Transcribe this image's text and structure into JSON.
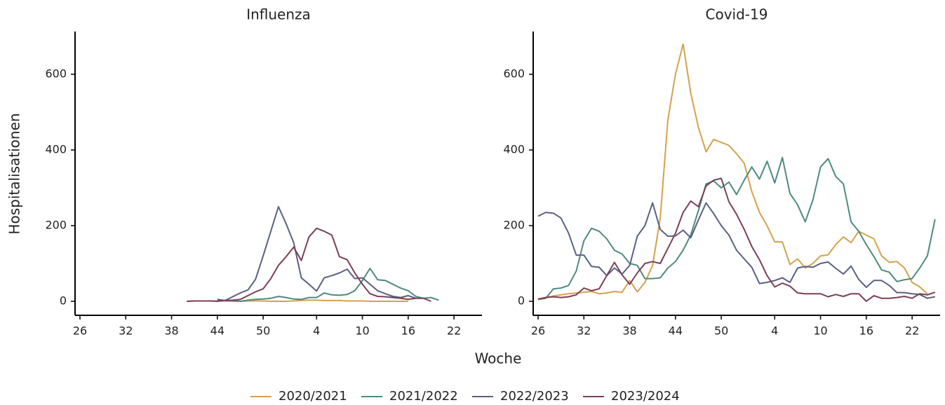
{
  "chart_data": [
    {
      "type": "line",
      "title": "Influenza",
      "x_label": "Woche",
      "y_label": "Hospitalisationen",
      "categories": [
        "26",
        null,
        null,
        null,
        null,
        null,
        "32",
        null,
        null,
        null,
        null,
        null,
        "38",
        null,
        null,
        null,
        null,
        null,
        "44",
        null,
        null,
        null,
        null,
        null,
        "50",
        null,
        null,
        null,
        null,
        null,
        null,
        "4",
        null,
        null,
        null,
        null,
        null,
        "10",
        null,
        null,
        null,
        null,
        null,
        "16",
        null,
        null,
        null,
        null,
        null,
        "22",
        null,
        null,
        null
      ],
      "ylim": [
        -37,
        713
      ],
      "yticks": [
        0,
        200,
        400,
        600
      ],
      "series": [
        {
          "name": "2020/2021",
          "color": "#d4a24c",
          "values": [
            null,
            null,
            null,
            null,
            null,
            null,
            null,
            null,
            null,
            null,
            null,
            null,
            null,
            null,
            0,
            1,
            1,
            1,
            1,
            1,
            0,
            0,
            1,
            1,
            1,
            0,
            0,
            0,
            1,
            2,
            3,
            3,
            2,
            2,
            2,
            1,
            1,
            1,
            0,
            0,
            0,
            0,
            0,
            0,
            null,
            null,
            null,
            null,
            null,
            null,
            null,
            null,
            null
          ]
        },
        {
          "name": "2021/2022",
          "color": "#4e8a7e",
          "values": [
            null,
            null,
            null,
            null,
            null,
            null,
            null,
            null,
            null,
            null,
            null,
            null,
            null,
            null,
            null,
            null,
            null,
            null,
            2,
            2,
            2,
            0,
            3,
            5,
            6,
            8,
            13,
            10,
            6,
            5,
            10,
            10,
            22,
            17,
            16,
            18,
            28,
            55,
            87,
            57,
            55,
            45,
            35,
            28,
            13,
            8,
            10,
            3,
            null,
            null,
            null,
            null,
            null
          ]
        },
        {
          "name": "2022/2023",
          "color": "#5a5f86",
          "values": [
            null,
            null,
            null,
            null,
            null,
            null,
            null,
            null,
            null,
            null,
            null,
            null,
            null,
            null,
            null,
            null,
            null,
            null,
            5,
            2,
            12,
            22,
            30,
            58,
            120,
            185,
            250,
            205,
            155,
            62,
            45,
            27,
            62,
            68,
            75,
            85,
            60,
            62,
            45,
            28,
            20,
            13,
            10,
            15,
            8,
            null,
            null,
            null,
            null,
            null,
            null,
            null,
            null
          ]
        },
        {
          "name": "2023/2024",
          "color": "#7b3f55",
          "values": [
            null,
            null,
            null,
            null,
            null,
            null,
            null,
            null,
            null,
            null,
            null,
            null,
            null,
            null,
            0,
            1,
            1,
            1,
            0,
            2,
            3,
            5,
            15,
            25,
            33,
            60,
            95,
            118,
            143,
            108,
            170,
            193,
            185,
            175,
            118,
            110,
            75,
            45,
            20,
            13,
            12,
            10,
            8,
            5,
            8,
            8,
            0,
            null,
            null,
            null,
            null,
            null,
            null
          ]
        }
      ]
    },
    {
      "type": "line",
      "title": "Covid-19",
      "categories": [
        "26",
        null,
        null,
        null,
        null,
        null,
        "32",
        null,
        null,
        null,
        null,
        null,
        "38",
        null,
        null,
        null,
        null,
        null,
        "44",
        null,
        null,
        null,
        null,
        null,
        "50",
        null,
        null,
        null,
        null,
        null,
        null,
        "4",
        null,
        null,
        null,
        null,
        null,
        "10",
        null,
        null,
        null,
        null,
        null,
        "16",
        null,
        null,
        null,
        null,
        null,
        "22",
        null,
        null,
        null
      ],
      "ylim": [
        -37,
        713
      ],
      "yticks": [
        0,
        200,
        400,
        600
      ],
      "series": [
        {
          "color": "#d4a24c",
          "values": [
            7,
            10,
            14,
            17,
            20,
            22,
            24,
            26,
            20,
            22,
            26,
            24,
            55,
            25,
            50,
            95,
            220,
            480,
            600,
            680,
            550,
            460,
            395,
            428,
            420,
            412,
            390,
            365,
            290,
            235,
            200,
            157,
            157,
            97,
            112,
            88,
            100,
            120,
            123,
            150,
            170,
            155,
            185,
            175,
            165,
            120,
            103,
            105,
            88,
            50,
            38,
            20,
            null
          ]
        },
        {
          "color": "#4e8a7e",
          "values": [
            5,
            8,
            33,
            35,
            42,
            80,
            160,
            193,
            185,
            165,
            135,
            125,
            100,
            95,
            60,
            60,
            62,
            88,
            105,
            135,
            175,
            240,
            310,
            318,
            300,
            315,
            282,
            320,
            355,
            323,
            370,
            313,
            380,
            285,
            255,
            210,
            268,
            355,
            377,
            330,
            310,
            210,
            185,
            150,
            118,
            83,
            77,
            52,
            57,
            60,
            88,
            120,
            217
          ]
        },
        {
          "color": "#5a5f86",
          "values": [
            225,
            235,
            233,
            220,
            180,
            122,
            122,
            92,
            90,
            68,
            88,
            72,
            95,
            172,
            200,
            260,
            190,
            172,
            173,
            188,
            168,
            215,
            260,
            232,
            200,
            175,
            135,
            112,
            90,
            47,
            50,
            55,
            62,
            50,
            88,
            92,
            90,
            100,
            104,
            87,
            72,
            93,
            58,
            37,
            55,
            55,
            42,
            23,
            23,
            20,
            18,
            8,
            12
          ]
        },
        {
          "color": "#7b3f55",
          "values": [
            5,
            10,
            12,
            10,
            12,
            17,
            35,
            28,
            33,
            68,
            103,
            70,
            45,
            75,
            100,
            105,
            100,
            140,
            180,
            235,
            265,
            250,
            305,
            320,
            325,
            263,
            230,
            190,
            145,
            110,
            68,
            38,
            48,
            40,
            22,
            20,
            20,
            20,
            12,
            18,
            13,
            20,
            20,
            0,
            15,
            8,
            8,
            10,
            13,
            8,
            20,
            17,
            24
          ]
        }
      ]
    }
  ]
}
